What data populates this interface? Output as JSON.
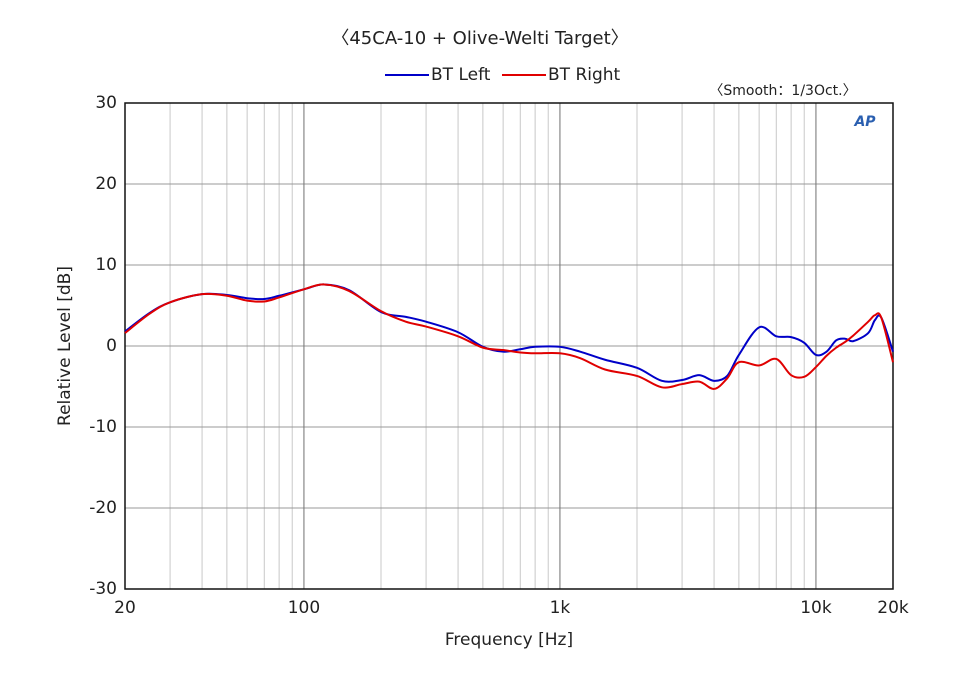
{
  "chart_data": {
    "type": "line",
    "title": "〈45CA-10 + Olive-Welti Target〉",
    "subtitle": "〈Smooth：1/3Oct.〉",
    "logo": "AP",
    "x_label": "Frequency [Hz]",
    "y_label": "Relative Level [dB]",
    "x_log": true,
    "grid": true,
    "legend": "top",
    "x": [
      20,
      25,
      30,
      40,
      50,
      60,
      70,
      80,
      100,
      120,
      150,
      200,
      250,
      300,
      400,
      500,
      600,
      700,
      800,
      1000,
      1200,
      1500,
      2000,
      2500,
      3000,
      3500,
      4000,
      4500,
      5000,
      6000,
      7000,
      8000,
      9000,
      10000,
      11000,
      12000,
      13000,
      14000,
      16000,
      17000,
      18000,
      20000
    ],
    "series": [
      {
        "name": "BT Left",
        "color": "#0000c8",
        "values": [
          1.8,
          4.1,
          5.4,
          6.4,
          6.3,
          5.9,
          5.8,
          6.2,
          7.0,
          7.6,
          6.9,
          4.2,
          3.6,
          3.0,
          1.7,
          -0.1,
          -0.7,
          -0.4,
          -0.1,
          -0.1,
          -0.7,
          -1.7,
          -2.7,
          -4.3,
          -4.2,
          -3.6,
          -4.3,
          -3.7,
          -1.1,
          2.3,
          1.2,
          1.1,
          0.4,
          -1.1,
          -0.7,
          0.7,
          0.9,
          0.6,
          1.6,
          3.2,
          3.5,
          -0.7
        ]
      },
      {
        "name": "BT Right",
        "color": "#e00000",
        "values": [
          1.6,
          4.0,
          5.4,
          6.4,
          6.2,
          5.6,
          5.5,
          6.0,
          7.0,
          7.6,
          6.8,
          4.3,
          3.0,
          2.4,
          1.2,
          -0.2,
          -0.5,
          -0.8,
          -0.9,
          -0.9,
          -1.5,
          -2.9,
          -3.7,
          -5.1,
          -4.7,
          -4.4,
          -5.3,
          -4.0,
          -2.0,
          -2.4,
          -1.6,
          -3.6,
          -3.8,
          -2.6,
          -1.2,
          -0.2,
          0.5,
          1.3,
          3.0,
          3.8,
          3.5,
          -2.0
        ]
      }
    ],
    "xlim": [
      20,
      20000
    ],
    "xticks": [
      20,
      100,
      {
        "value": 1000,
        "label": "1k"
      },
      {
        "value": 10000,
        "label": "10k"
      },
      {
        "value": 20000,
        "label": "20k"
      }
    ],
    "ylim": [
      -30,
      30
    ],
    "yticks": [
      -30,
      -20,
      -10,
      0,
      10,
      20,
      30
    ]
  }
}
